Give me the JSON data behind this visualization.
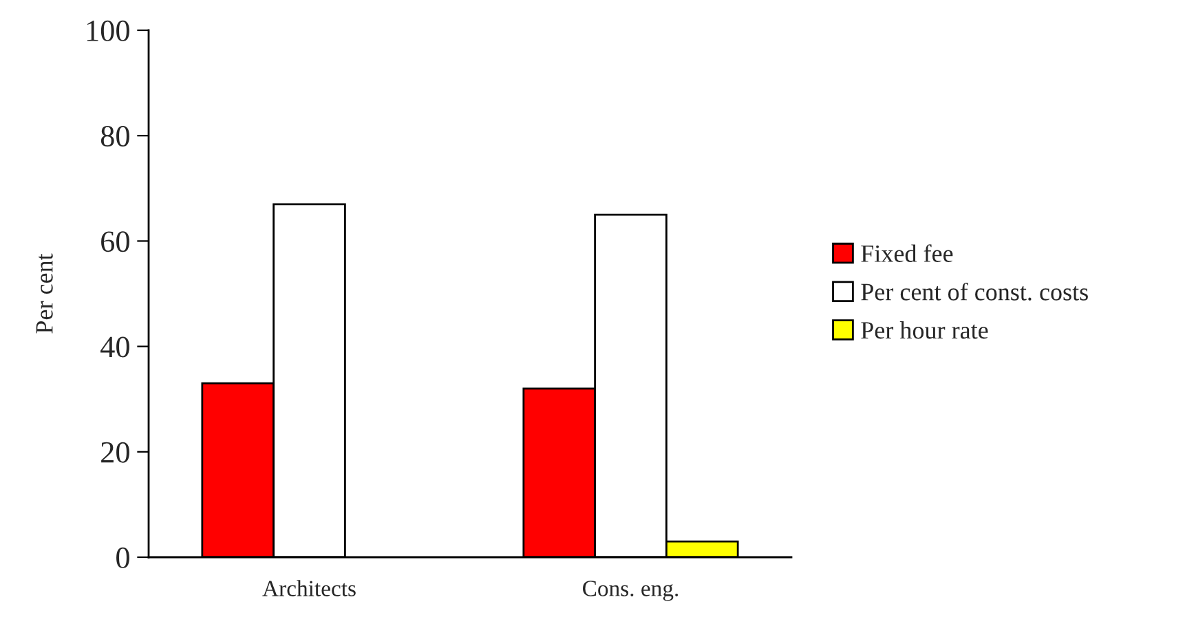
{
  "chart_data": {
    "type": "bar",
    "ylabel": "Per cent",
    "categories": [
      "Architects",
      "Cons. eng."
    ],
    "series": [
      {
        "name": "Fixed fee",
        "color": "#ff0000",
        "values": [
          33,
          32
        ]
      },
      {
        "name": "Per cent of const. costs",
        "color": "#ffffff",
        "values": [
          67,
          65
        ]
      },
      {
        "name": "Per hour rate",
        "color": "#ffff00",
        "values": [
          null,
          3
        ]
      }
    ],
    "ylim": [
      0,
      100
    ],
    "yticks": [
      0,
      20,
      40,
      60,
      80,
      100
    ],
    "grid": false,
    "legend": "right"
  }
}
